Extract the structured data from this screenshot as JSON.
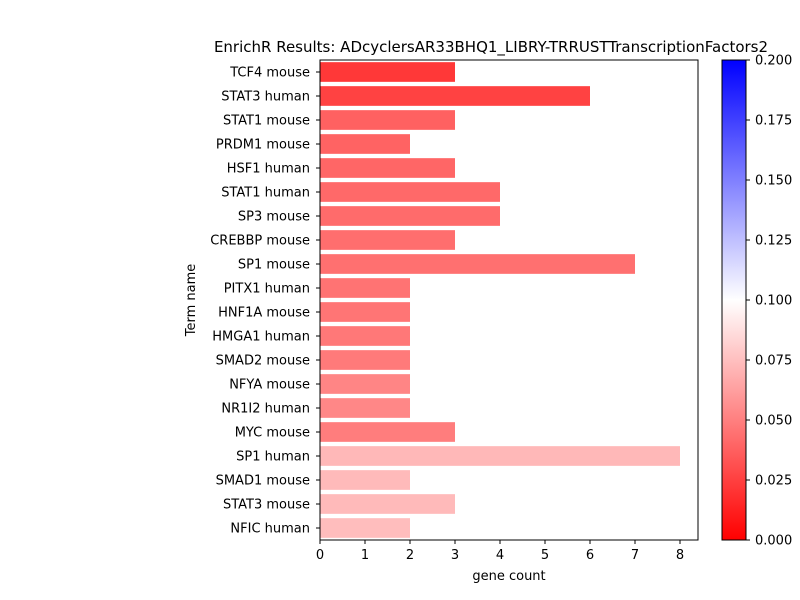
{
  "chart_data": {
    "type": "bar",
    "orientation": "horizontal",
    "title": "EnrichR Results: ADcyclersAR33BHQ1_LIBRY-TRRUSTTranscriptionFactors2",
    "xlabel": "gene count",
    "ylabel": "Term name",
    "xlim": [
      0,
      8.4
    ],
    "xticks": [
      "0",
      "1",
      "2",
      "3",
      "4",
      "5",
      "6",
      "7",
      "8"
    ],
    "grid": false,
    "categories": [
      "TCF4 mouse",
      "STAT3 human",
      "STAT1 mouse",
      "PRDM1 mouse",
      "HSF1 human",
      "STAT1 human",
      "SP3 mouse",
      "CREBBP mouse",
      "SP1 mouse",
      "PITX1 human",
      "HNF1A mouse",
      "HMGA1 human",
      "SMAD2 mouse",
      "NFYA mouse",
      "NR1I2 human",
      "MYC mouse",
      "SP1 human",
      "SMAD1 mouse",
      "STAT3 mouse",
      "NFIC human"
    ],
    "values": [
      3,
      6,
      3,
      2,
      3,
      4,
      4,
      3,
      7,
      2,
      2,
      2,
      2,
      2,
      2,
      3,
      8,
      2,
      3,
      2
    ],
    "color_values": [
      0.022,
      0.026,
      0.038,
      0.039,
      0.04,
      0.041,
      0.042,
      0.043,
      0.044,
      0.045,
      0.046,
      0.047,
      0.048,
      0.052,
      0.053,
      0.049,
      0.072,
      0.073,
      0.073,
      0.074
    ],
    "colorbar": {
      "range": [
        0.0,
        0.2
      ],
      "ticks": [
        "0.000",
        "0.025",
        "0.050",
        "0.075",
        "0.100",
        "0.125",
        "0.150",
        "0.175",
        "0.200"
      ],
      "colors": [
        "#ff0000",
        "#ffffff",
        "#0000ff"
      ]
    }
  }
}
